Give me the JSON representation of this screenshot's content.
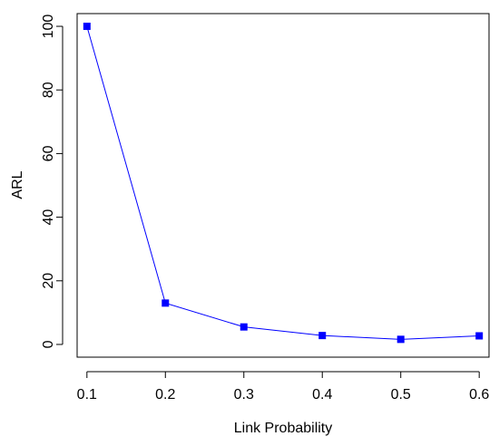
{
  "chart_data": {
    "type": "line",
    "xlabel": "Link Probability",
    "ylabel": "ARL",
    "x": [
      0.1,
      0.2,
      0.3,
      0.4,
      0.5,
      0.6
    ],
    "xtick_labels": [
      "0.1",
      "0.2",
      "0.3",
      "0.4",
      "0.5",
      "0.6"
    ],
    "ytick_values": [
      0,
      20,
      40,
      60,
      80,
      100
    ],
    "ytick_labels": [
      "0",
      "20",
      "40",
      "60",
      "80",
      "100"
    ],
    "series": [
      {
        "values": [
          100,
          13,
          5.5,
          2.8,
          1.6,
          2.7
        ],
        "color": "#0000ff",
        "marker": "square"
      }
    ],
    "xlim": [
      0.0875,
      0.6125
    ],
    "ylim": [
      -4,
      104
    ],
    "grid": false,
    "frame": true
  }
}
